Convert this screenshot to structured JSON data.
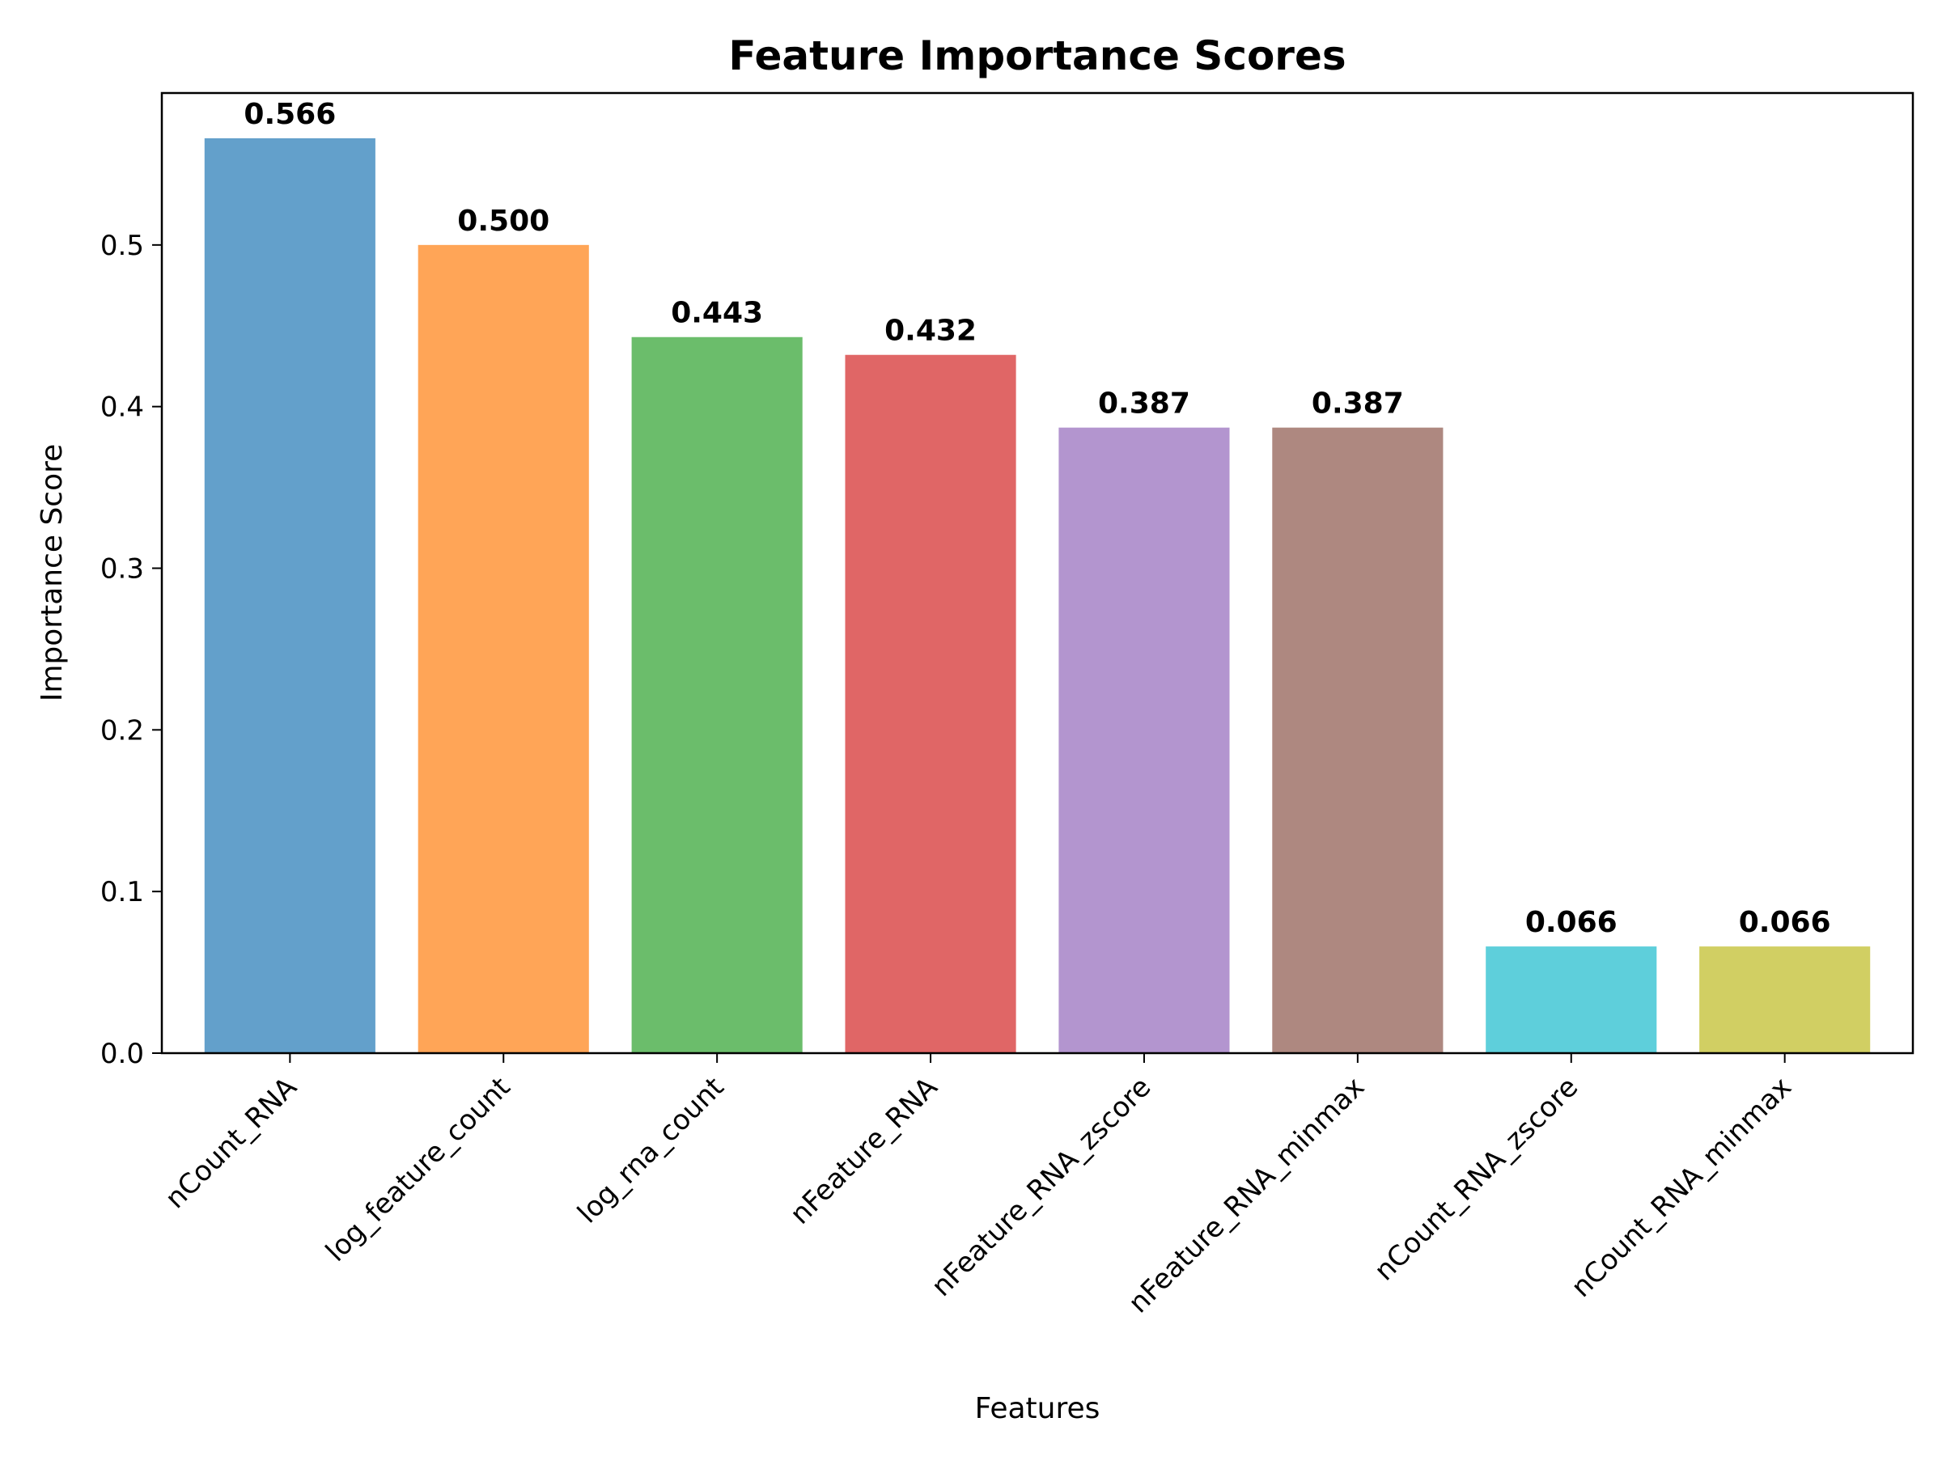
{
  "chart_data": {
    "type": "bar",
    "title": "Feature Importance Scores",
    "xlabel": "Features",
    "ylabel": "Importance Score",
    "categories": [
      "nCount_RNA",
      "log_feature_count",
      "log_rna_count",
      "nFeature_RNA",
      "nFeature_RNA_zscore",
      "nFeature_RNA_minmax",
      "nCount_RNA_zscore",
      "nCount_RNA_minmax"
    ],
    "values": [
      0.566,
      0.5,
      0.443,
      0.432,
      0.387,
      0.387,
      0.066,
      0.066
    ],
    "value_labels": [
      "0.566",
      "0.500",
      "0.443",
      "0.432",
      "0.387",
      "0.387",
      "0.066",
      "0.066"
    ],
    "colors": [
      "#63a0cb",
      "#ffa557",
      "#6bbd6b",
      "#e06666",
      "#b395cf",
      "#ae8880",
      "#5ecfdb",
      "#d1cf63"
    ],
    "ylim": [
      0,
      0.594
    ],
    "yticks": [
      0.0,
      0.1,
      0.2,
      0.3,
      0.4,
      0.5
    ],
    "ytick_labels": [
      "0.0",
      "0.1",
      "0.2",
      "0.3",
      "0.4",
      "0.5"
    ],
    "grid": false,
    "legend": false
  }
}
